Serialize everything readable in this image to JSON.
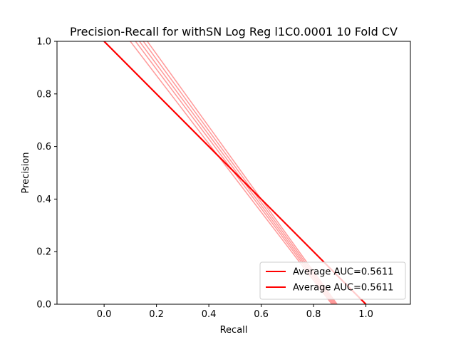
{
  "chart_data": {
    "type": "line",
    "title": "Precision-Recall for withSN Log Reg l1C0.0001 10 Fold CV",
    "xlabel": "Recall",
    "ylabel": "Precision",
    "xlim": [
      -0.18,
      1.17
    ],
    "ylim": [
      0.0,
      1.0
    ],
    "xticks": [
      0.0,
      0.2,
      0.4,
      0.6,
      0.8,
      1.0
    ],
    "xtick_labels": [
      "0.0",
      "0.2",
      "0.4",
      "0.6",
      "0.8",
      "1.0"
    ],
    "yticks": [
      0.0,
      0.2,
      0.4,
      0.6,
      0.8,
      1.0
    ],
    "ytick_labels": [
      "0.0",
      "0.2",
      "0.4",
      "0.6",
      "0.8",
      "1.0"
    ],
    "grid": false,
    "legend_position": "lower-right",
    "series": [
      {
        "name": "Average AUC=0.5611",
        "color": "#ff0000",
        "opacity": 1.0,
        "x": [
          0.0,
          1.0
        ],
        "y": [
          1.0,
          0.0
        ]
      },
      {
        "name": "Average AUC=0.5611",
        "color": "#ff0000",
        "opacity": 1.0,
        "x": [
          0.0,
          1.0
        ],
        "y": [
          1.0,
          0.0
        ]
      },
      {
        "color": "#ff0000",
        "opacity": 0.4,
        "x": [
          0.1,
          0.87
        ],
        "y": [
          1.0,
          0.0
        ]
      },
      {
        "color": "#ff0000",
        "opacity": 0.4,
        "x": [
          0.12,
          0.875
        ],
        "y": [
          1.0,
          0.0
        ]
      },
      {
        "color": "#ff0000",
        "opacity": 0.4,
        "x": [
          0.135,
          0.88
        ],
        "y": [
          1.0,
          0.0
        ]
      },
      {
        "color": "#ff0000",
        "opacity": 0.4,
        "x": [
          0.15,
          0.885
        ],
        "y": [
          1.0,
          0.0
        ]
      },
      {
        "color": "#ff0000",
        "opacity": 0.4,
        "x": [
          0.165,
          0.89
        ],
        "y": [
          1.0,
          0.0
        ]
      }
    ]
  }
}
